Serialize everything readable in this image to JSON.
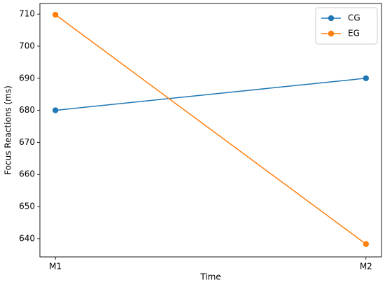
{
  "chart_data": {
    "type": "line",
    "categories": [
      "M1",
      "M2"
    ],
    "series": [
      {
        "name": "CG",
        "color": "#1f77b4",
        "values": [
          680,
          690
        ]
      },
      {
        "name": "EG",
        "color": "#ff7f0e",
        "values": [
          709.8,
          638.3
        ]
      }
    ],
    "xlabel": "Time",
    "ylabel": "Focus Reactions (ms)",
    "ylim": [
      634.3,
      713.3
    ],
    "yticks": [
      640,
      650,
      660,
      670,
      680,
      690,
      700,
      710
    ],
    "grid": false,
    "legend": "upper right"
  }
}
